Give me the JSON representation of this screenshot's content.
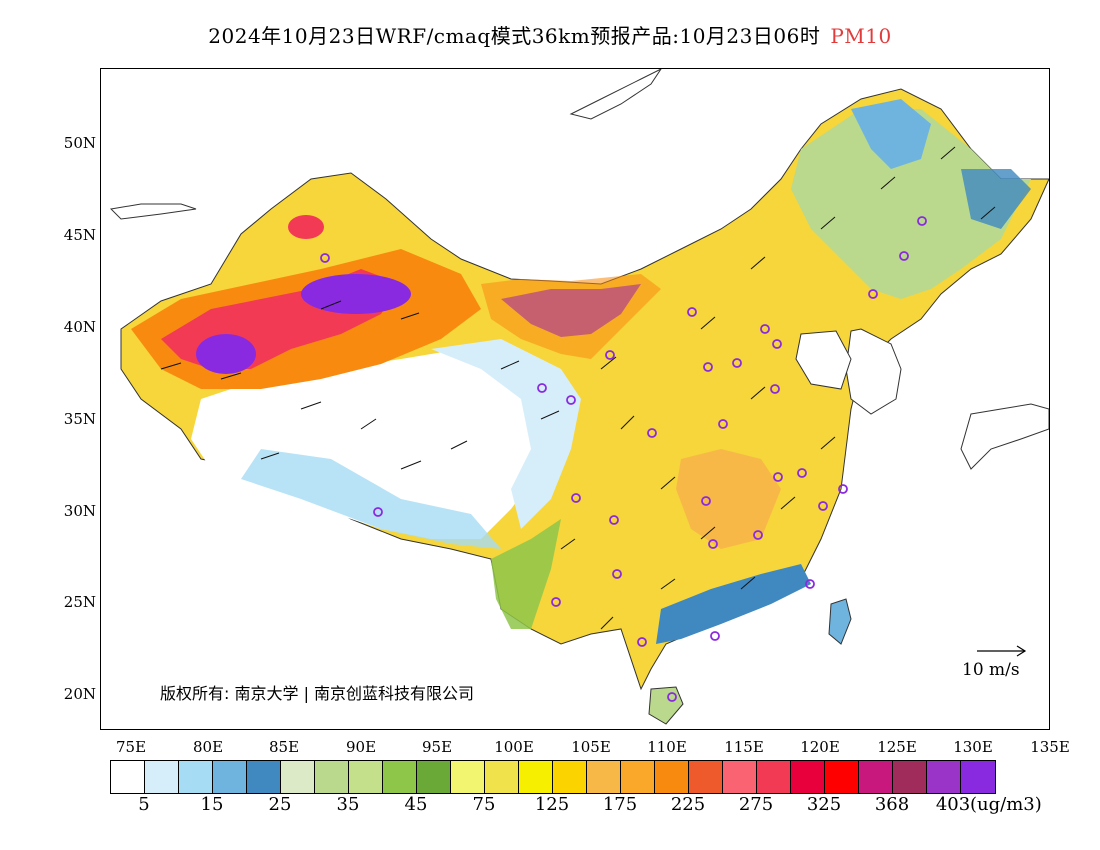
{
  "title": {
    "main": "2024年10月23日WRF/cmaq模式36km预报产品:10月23日06时",
    "variable": "PM10"
  },
  "map": {
    "lat_labels": [
      "50N",
      "45N",
      "40N",
      "35N",
      "30N",
      "25N",
      "20N"
    ],
    "lon_labels": [
      "75E",
      "80E",
      "85E",
      "90E",
      "95E",
      "100E",
      "105E",
      "110E",
      "115E",
      "120E",
      "125E",
      "130E",
      "135E"
    ],
    "copyright": "版权所有: 南京大学 | 南京创蓝科技有限公司",
    "wind_reference": "10 m/s"
  },
  "colorbar": {
    "colors": [
      "#ffffff",
      "#d6eefa",
      "#a6dcf4",
      "#6fb4de",
      "#3f88c0",
      "#dceac8",
      "#bad98c",
      "#c5e08a",
      "#8ec64a",
      "#6aa838",
      "#f2f570",
      "#f0e24a",
      "#f7ef00",
      "#fbd400",
      "#f8b848",
      "#faa82a",
      "#f88a10",
      "#ee5a2c",
      "#fa6472",
      "#f23a55",
      "#e8003c",
      "#ff0000",
      "#c8187e",
      "#a02c5c",
      "#9a34c8",
      "#8a2ae0"
    ],
    "labels": [
      "5",
      "15",
      "25",
      "35",
      "45",
      "75",
      "125",
      "175",
      "225",
      "275",
      "325",
      "368",
      "403"
    ],
    "unit": "(ug/m3)"
  },
  "colors": {
    "title_highlight": "#e23b3b"
  }
}
